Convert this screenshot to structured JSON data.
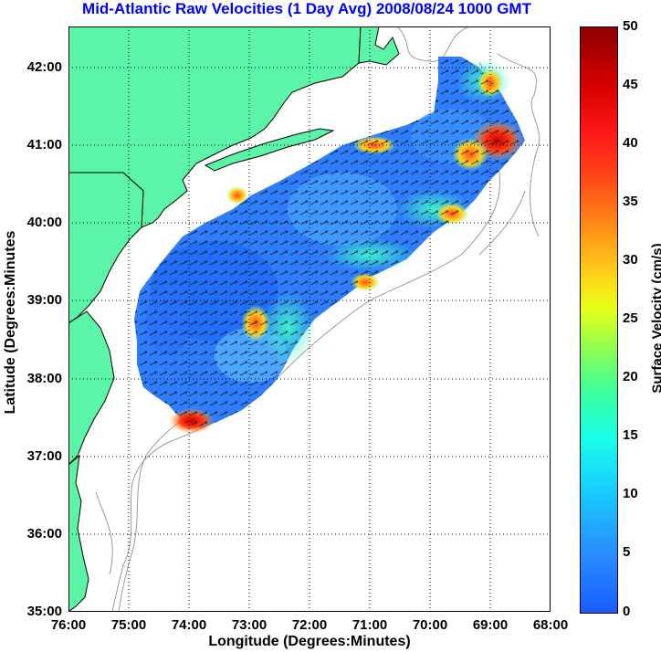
{
  "title": "Mid-Atlantic Raw Velocities (1 Day Avg) 2008/08/24 1000 GMT",
  "axes": {
    "xlabel": "Longitude (Degrees:Minutes)",
    "ylabel": "Latitude (Degrees:Minutes",
    "xticks": [
      "76:00",
      "75:00",
      "74:00",
      "73:00",
      "72:00",
      "71:00",
      "70:00",
      "69:00",
      "68:00"
    ],
    "yticks": [
      "42:00",
      "41:00",
      "40:00",
      "39:00",
      "38:00",
      "37:00",
      "36:00",
      "35:00"
    ]
  },
  "colorbar": {
    "label": "Surface Velocity (cm/s)",
    "ticks": [
      "50",
      "45",
      "40",
      "35",
      "30",
      "25",
      "20",
      "15",
      "10",
      "5",
      "0"
    ],
    "range": [
      0,
      50
    ]
  },
  "colors": {
    "land": "#5cf5a8",
    "coast": "#000000",
    "bathymetry": "#9a9a9a",
    "grid": "#000000",
    "title": "#0000ff"
  }
}
